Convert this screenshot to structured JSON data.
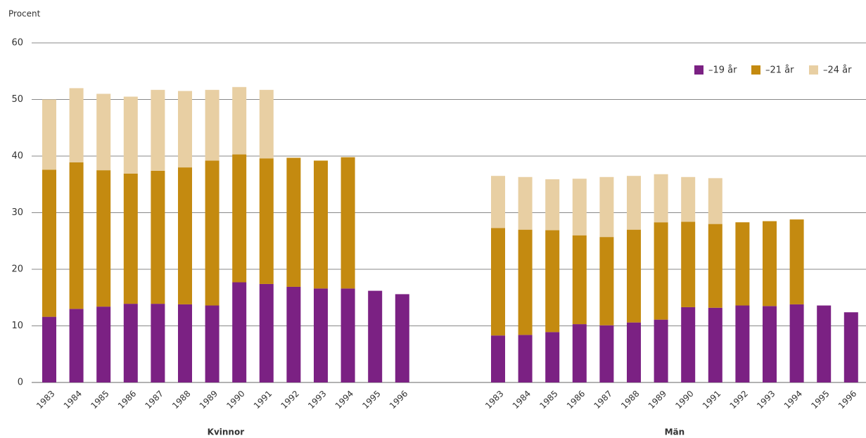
{
  "chart_data": {
    "type": "bar",
    "stacked": true,
    "ylabel": "Procent",
    "ylim": [
      0,
      60
    ],
    "yticks": [
      0,
      10,
      20,
      30,
      40,
      50,
      60
    ],
    "grid": true,
    "legend": "top-right",
    "series": [
      {
        "name": "–19 år",
        "color": "#7b2183"
      },
      {
        "name": "–21 år",
        "color": "#c48a10"
      },
      {
        "name": "–24 år",
        "color": "#e8cfa3"
      }
    ],
    "panels": [
      {
        "xlabel": "Kvinnor",
        "categories": [
          "1983",
          "1984",
          "1985",
          "1986",
          "1987",
          "1988",
          "1989",
          "1990",
          "1991",
          "1992",
          "1993",
          "1994",
          "1995",
          "1996"
        ],
        "values": [
          [
            11.6,
            13.0,
            13.4,
            13.9,
            13.9,
            13.8,
            13.6,
            17.7,
            17.4,
            16.9,
            16.6,
            16.6,
            16.2,
            15.6
          ],
          [
            26.0,
            25.9,
            24.1,
            23.0,
            23.5,
            24.2,
            25.6,
            22.6,
            22.2,
            22.8,
            22.6,
            23.2,
            null,
            null
          ],
          [
            12.4,
            13.1,
            13.5,
            13.6,
            14.3,
            13.5,
            12.5,
            11.9,
            12.1,
            null,
            null,
            null,
            null,
            null
          ]
        ]
      },
      {
        "xlabel": "Män",
        "categories": [
          "1983",
          "1984",
          "1985",
          "1986",
          "1987",
          "1988",
          "1989",
          "1990",
          "1991",
          "1992",
          "1993",
          "1994",
          "1995",
          "1996"
        ],
        "values": [
          [
            8.3,
            8.4,
            8.9,
            10.3,
            10.1,
            10.6,
            11.1,
            13.3,
            13.2,
            13.6,
            13.5,
            13.8,
            13.6,
            12.4
          ],
          [
            19.0,
            18.6,
            18.0,
            15.7,
            15.6,
            16.4,
            17.2,
            15.1,
            14.8,
            14.7,
            15.0,
            15.0,
            null,
            null
          ],
          [
            9.2,
            9.3,
            9.0,
            10.0,
            10.6,
            9.5,
            8.5,
            7.9,
            8.1,
            null,
            null,
            null,
            null,
            null
          ]
        ]
      }
    ]
  }
}
